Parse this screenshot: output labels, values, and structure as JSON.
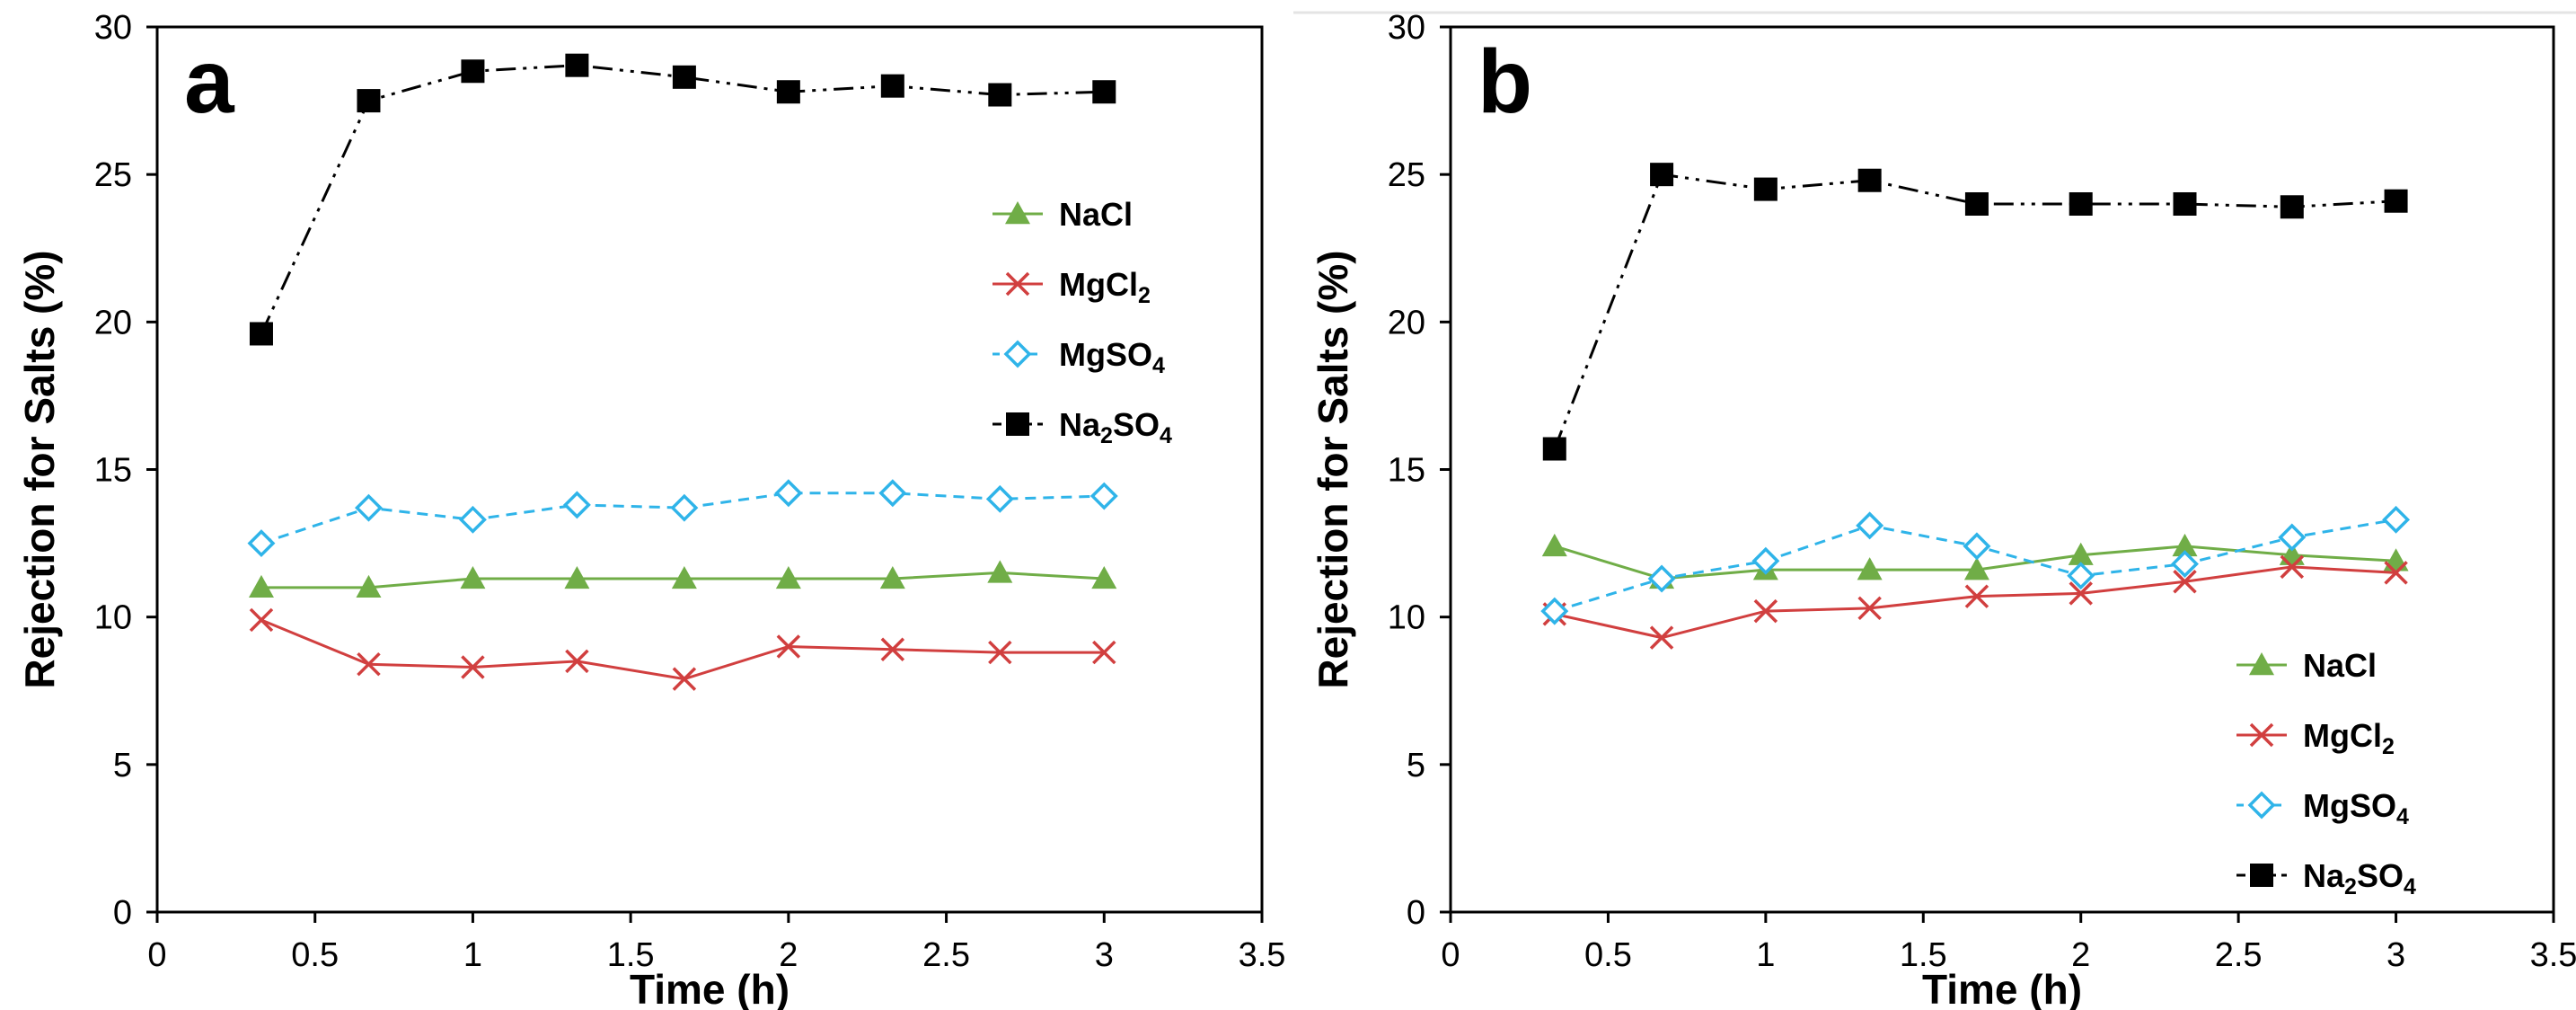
{
  "colors": {
    "NaCl": "#70ad47",
    "MgCl2": "#d13f3f",
    "MgSO4": "#2fb4e9",
    "Na2SO4": "#000000"
  },
  "chart_data": [
    {
      "type": "line",
      "panel_label": "a",
      "xlabel": "Time (h)",
      "ylabel": "Rejection for Salts (%)",
      "xlim": [
        0,
        3.5
      ],
      "ylim": [
        0,
        30
      ],
      "x_ticks": [
        "0",
        "0.5",
        "1",
        "1.5",
        "2",
        "2.5",
        "3",
        "3.5"
      ],
      "y_ticks": [
        "0",
        "5",
        "10",
        "15",
        "20",
        "25",
        "30"
      ],
      "legend_position": "right-middle",
      "x": [
        0.33,
        0.67,
        1,
        1.33,
        1.67,
        2,
        2.33,
        2.67,
        3
      ],
      "series": [
        {
          "key": "NaCl",
          "name": "NaCl",
          "sub": "",
          "tail": "",
          "values": [
            11.0,
            11.0,
            11.3,
            11.3,
            11.3,
            11.3,
            11.3,
            11.5,
            11.3
          ]
        },
        {
          "key": "MgCl2",
          "name": "MgCl",
          "sub": "2",
          "tail": "",
          "values": [
            9.9,
            8.4,
            8.3,
            8.5,
            7.9,
            9.0,
            8.9,
            8.8,
            8.8
          ]
        },
        {
          "key": "MgSO4",
          "name": "MgSO",
          "sub": "4",
          "tail": "",
          "values": [
            12.5,
            13.7,
            13.3,
            13.8,
            13.7,
            14.2,
            14.2,
            14.0,
            14.1
          ]
        },
        {
          "key": "Na2SO4",
          "name": "Na",
          "sub": "2",
          "tail": "SO",
          "sub2": "4",
          "values": [
            19.6,
            27.5,
            28.5,
            28.7,
            28.3,
            27.8,
            28.0,
            27.7,
            27.8
          ]
        }
      ]
    },
    {
      "type": "line",
      "panel_label": "b",
      "xlabel": "Time (h)",
      "ylabel": "Rejection for Salts (%)",
      "xlim": [
        0,
        3.5
      ],
      "ylim": [
        0,
        30
      ],
      "x_ticks": [
        "0",
        "0.5",
        "1",
        "1.5",
        "2",
        "2.5",
        "3",
        "3.5"
      ],
      "y_ticks": [
        "0",
        "5",
        "10",
        "15",
        "20",
        "25",
        "30"
      ],
      "legend_position": "bottom-right",
      "x": [
        0.33,
        0.67,
        1,
        1.33,
        1.67,
        2,
        2.33,
        2.67,
        3
      ],
      "series": [
        {
          "key": "NaCl",
          "name": "NaCl",
          "sub": "",
          "tail": "",
          "values": [
            12.4,
            11.3,
            11.6,
            11.6,
            11.6,
            12.1,
            12.4,
            12.1,
            11.9
          ]
        },
        {
          "key": "MgCl2",
          "name": "MgCl",
          "sub": "2",
          "tail": "",
          "values": [
            10.1,
            9.3,
            10.2,
            10.3,
            10.7,
            10.8,
            11.2,
            11.7,
            11.5
          ]
        },
        {
          "key": "MgSO4",
          "name": "MgSO",
          "sub": "4",
          "tail": "",
          "values": [
            10.2,
            11.3,
            11.9,
            13.1,
            12.4,
            11.4,
            11.8,
            12.7,
            13.3
          ]
        },
        {
          "key": "Na2SO4",
          "name": "Na",
          "sub": "2",
          "tail": "SO",
          "sub2": "4",
          "values": [
            15.7,
            25.0,
            24.5,
            24.8,
            24.0,
            24.0,
            24.0,
            23.9,
            24.1
          ]
        }
      ]
    }
  ]
}
